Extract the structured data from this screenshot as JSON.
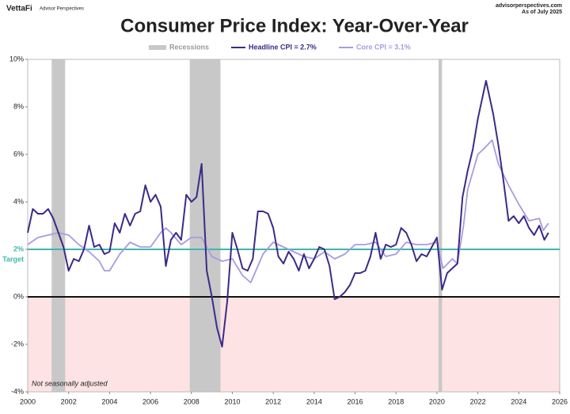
{
  "header": {
    "brand": "VettaFi",
    "brand_sub": "Advisor Perspectives",
    "source": "advisorperspectives.com",
    "as_of": "As of July 2025"
  },
  "chart_data": {
    "type": "line",
    "title": "Consumer Price Index: Year-Over-Year",
    "note": "Not seasonally adjusted",
    "xlim": [
      2000,
      2026
    ],
    "xticks": [
      2000,
      2002,
      2004,
      2006,
      2008,
      2010,
      2012,
      2014,
      2016,
      2018,
      2020,
      2022,
      2024,
      2026
    ],
    "ylim": [
      -4,
      10
    ],
    "yticks": [
      {
        "value": -4,
        "label": "-4%"
      },
      {
        "value": -2,
        "label": "-2%"
      },
      {
        "value": 0,
        "label": "0%"
      },
      {
        "value": 2,
        "label": "2%"
      },
      {
        "value": 4,
        "label": "4%"
      },
      {
        "value": 6,
        "label": "6%"
      },
      {
        "value": 8,
        "label": "8%"
      },
      {
        "value": 10,
        "label": "10%"
      }
    ],
    "target": {
      "value": 2,
      "label": "Target",
      "color": "#3fb6b0"
    },
    "recession_label": "Recessions",
    "recession_color": "#c8c8c8",
    "recessions": [
      [
        2001.17,
        2001.83
      ],
      [
        2007.92,
        2009.42
      ],
      [
        2020.08,
        2020.25
      ]
    ],
    "negative_fill": "#fde3e3",
    "series": [
      {
        "name": "Headline CPI = 2.7%",
        "color": "#3d2a87",
        "x": [
          2000,
          2000.25,
          2000.5,
          2000.75,
          2001,
          2001.25,
          2001.5,
          2001.75,
          2002,
          2002.25,
          2002.5,
          2002.75,
          2003,
          2003.25,
          2003.5,
          2003.75,
          2004,
          2004.25,
          2004.5,
          2004.75,
          2005,
          2005.25,
          2005.5,
          2005.75,
          2006,
          2006.25,
          2006.5,
          2006.75,
          2007,
          2007.25,
          2007.5,
          2007.75,
          2008,
          2008.25,
          2008.5,
          2008.75,
          2009,
          2009.25,
          2009.5,
          2009.75,
          2010,
          2010.25,
          2010.5,
          2010.75,
          2011,
          2011.25,
          2011.5,
          2011.75,
          2012,
          2012.25,
          2012.5,
          2012.75,
          2013,
          2013.25,
          2013.5,
          2013.75,
          2014,
          2014.25,
          2014.5,
          2014.75,
          2015,
          2015.25,
          2015.5,
          2015.75,
          2016,
          2016.25,
          2016.5,
          2016.75,
          2017,
          2017.25,
          2017.5,
          2017.75,
          2018,
          2018.25,
          2018.5,
          2018.75,
          2019,
          2019.25,
          2019.5,
          2019.75,
          2020,
          2020.25,
          2020.5,
          2020.75,
          2021,
          2021.25,
          2021.5,
          2021.75,
          2022,
          2022.25,
          2022.4,
          2022.75,
          2023,
          2023.25,
          2023.5,
          2023.75,
          2024,
          2024.25,
          2024.5,
          2024.75,
          2025,
          2025.25,
          2025.45
        ],
        "values": [
          2.7,
          3.7,
          3.5,
          3.5,
          3.7,
          3.3,
          2.7,
          2.1,
          1.1,
          1.6,
          1.5,
          2.0,
          3.0,
          2.1,
          2.2,
          1.8,
          1.9,
          3.1,
          2.7,
          3.5,
          3.0,
          3.5,
          3.6,
          4.7,
          4.0,
          4.3,
          3.8,
          1.3,
          2.4,
          2.7,
          2.4,
          4.3,
          4.0,
          4.2,
          5.6,
          1.1,
          0.0,
          -1.3,
          -2.1,
          -0.2,
          2.7,
          2.0,
          1.2,
          1.1,
          1.6,
          3.6,
          3.6,
          3.5,
          2.9,
          1.7,
          1.4,
          1.9,
          1.6,
          1.1,
          1.8,
          1.2,
          1.6,
          2.1,
          2.0,
          1.3,
          -0.1,
          0.0,
          0.2,
          0.5,
          1.0,
          1.0,
          1.1,
          1.7,
          2.7,
          1.6,
          2.2,
          2.1,
          2.2,
          2.9,
          2.7,
          2.2,
          1.5,
          1.8,
          1.7,
          2.1,
          2.5,
          0.3,
          1.0,
          1.2,
          1.4,
          4.2,
          5.3,
          6.2,
          7.5,
          8.5,
          9.1,
          7.7,
          6.4,
          4.9,
          3.2,
          3.4,
          3.1,
          3.4,
          2.9,
          2.6,
          3.0,
          2.4,
          2.7
        ]
      },
      {
        "name": "Core CPI = 3.1%",
        "color": "#a99be0",
        "x": [
          2000,
          2000.5,
          2001,
          2001.5,
          2002,
          2002.5,
          2003,
          2003.5,
          2003.75,
          2004,
          2004.5,
          2005,
          2005.5,
          2006,
          2006.5,
          2006.75,
          2007,
          2007.5,
          2008,
          2008.5,
          2009,
          2009.5,
          2010,
          2010.5,
          2010.9,
          2011.5,
          2012,
          2012.5,
          2013,
          2013.5,
          2014,
          2014.5,
          2015,
          2015.5,
          2016,
          2016.5,
          2017,
          2017.5,
          2018,
          2018.5,
          2019,
          2019.5,
          2020,
          2020.3,
          2020.75,
          2021,
          2021.3,
          2021.5,
          2022,
          2022.25,
          2022.7,
          2023,
          2023.5,
          2024,
          2024.5,
          2025,
          2025.2,
          2025.45
        ],
        "values": [
          2.2,
          2.5,
          2.6,
          2.7,
          2.6,
          2.2,
          1.9,
          1.5,
          1.1,
          1.1,
          1.8,
          2.3,
          2.1,
          2.1,
          2.7,
          2.9,
          2.7,
          2.2,
          2.5,
          2.5,
          1.7,
          1.5,
          1.6,
          0.9,
          0.6,
          1.8,
          2.3,
          2.1,
          1.9,
          1.7,
          1.6,
          1.9,
          1.6,
          1.8,
          2.2,
          2.2,
          2.3,
          1.7,
          1.8,
          2.3,
          2.2,
          2.2,
          2.3,
          1.2,
          1.6,
          1.4,
          3.0,
          4.5,
          6.0,
          6.2,
          6.6,
          5.6,
          4.7,
          3.9,
          3.2,
          3.3,
          2.8,
          3.1
        ]
      }
    ]
  }
}
